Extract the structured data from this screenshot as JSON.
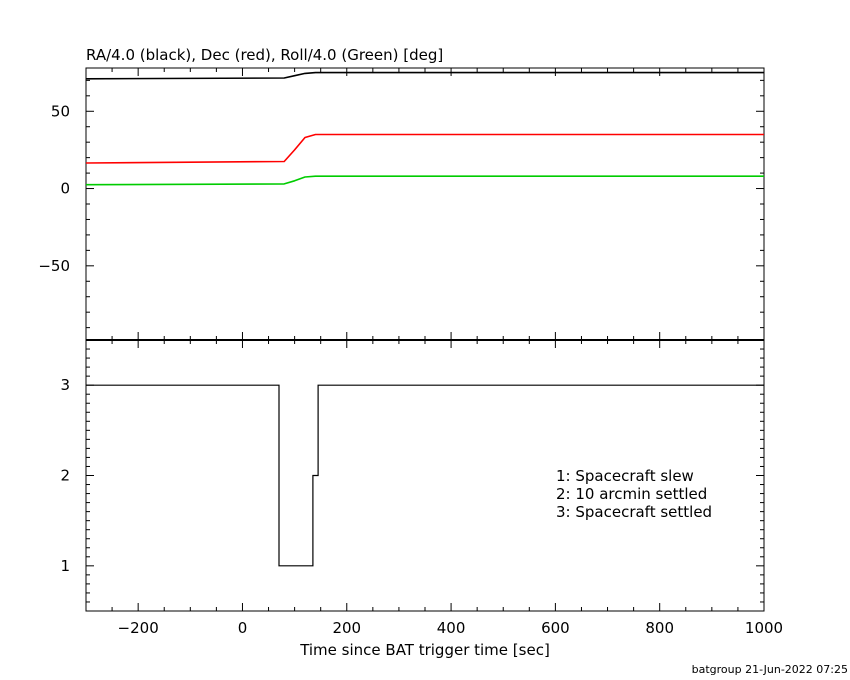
{
  "chart_data": [
    {
      "type": "line",
      "title": "RA/4.0 (black), Dec (red), Roll/4.0 (Green) [deg]",
      "xlim": [
        -300,
        1000
      ],
      "ylim": [
        -98,
        78
      ],
      "yticks": [
        -50,
        0,
        50
      ],
      "series": [
        {
          "color": "#000000",
          "x": [
            -300,
            80,
            100,
            120,
            140,
            1000
          ],
          "y": [
            71,
            71.5,
            73,
            74.5,
            75,
            75
          ]
        },
        {
          "color": "#ff0000",
          "x": [
            -300,
            80,
            100,
            120,
            140,
            1000
          ],
          "y": [
            16.5,
            17.5,
            25,
            33,
            35,
            35
          ]
        },
        {
          "color": "#00cc00",
          "x": [
            -300,
            80,
            100,
            120,
            140,
            1000
          ],
          "y": [
            2.5,
            3,
            5,
            7.5,
            8,
            8
          ]
        }
      ]
    },
    {
      "type": "line",
      "xlabel": "Time since BAT trigger time [sec]",
      "xlim": [
        -300,
        1000
      ],
      "ylim": [
        0.5,
        3.5
      ],
      "xticks": [
        -200,
        0,
        200,
        400,
        600,
        800,
        1000
      ],
      "yticks": [
        1,
        2,
        3
      ],
      "series": [
        {
          "color": "#000000",
          "x": [
            -300,
            70,
            70,
            135,
            135,
            145,
            145,
            1000
          ],
          "y": [
            3,
            3,
            1,
            1,
            2,
            2,
            3,
            3
          ]
        }
      ],
      "annotations": [
        "1: Spacecraft slew",
        "2: 10 arcmin settled",
        "3: Spacecraft settled"
      ]
    }
  ],
  "footer": "batgroup 21-Jun-2022 07:25"
}
